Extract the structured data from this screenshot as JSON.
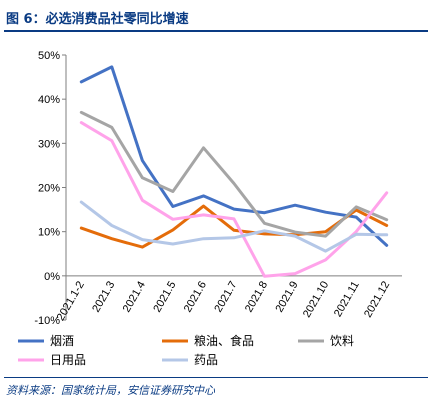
{
  "figure": {
    "title": "图 6：必选消费品社零同比增速",
    "source": "资料来源：国家统计局，安信证券研究中心"
  },
  "chart_data": {
    "type": "line",
    "title": "",
    "xlabel": "",
    "ylabel": "",
    "categories": [
      "2021.1-2",
      "2021.3",
      "2021.4",
      "2021.5",
      "2021.6",
      "2021.7",
      "2021.8",
      "2021.9",
      "2021.10",
      "2021.11",
      "2021.12"
    ],
    "ylim": [
      -10,
      50
    ],
    "ytick_labels": [
      "-10%",
      "0%",
      "10%",
      "20%",
      "30%",
      "40%",
      "50%"
    ],
    "ytick_values": [
      -10,
      0,
      10,
      20,
      30,
      40,
      50
    ],
    "grid": false,
    "legend_position": "bottom",
    "series": [
      {
        "name": "烟酒",
        "color": "#4472c4",
        "values": [
          43.9,
          47.3,
          26.1,
          15.7,
          18.1,
          15.1,
          14.3,
          16.0,
          14.4,
          13.3,
          6.9
        ]
      },
      {
        "name": "粮油、食品",
        "color": "#e46c0a",
        "values": [
          10.8,
          8.4,
          6.5,
          10.4,
          15.8,
          10.3,
          9.5,
          9.3,
          10.0,
          14.9,
          11.4
        ]
      },
      {
        "name": "饮料",
        "color": "#a5a5a5",
        "values": [
          37.0,
          33.6,
          22.2,
          19.1,
          29.0,
          20.9,
          11.9,
          9.9,
          9.0,
          15.6,
          12.7
        ]
      },
      {
        "name": "日用品",
        "color": "#ffa3ea",
        "values": [
          34.7,
          30.6,
          17.1,
          12.8,
          13.8,
          12.9,
          -0.1,
          0.5,
          3.6,
          10.0,
          18.8
        ]
      },
      {
        "name": "药品",
        "color": "#b4c7e7",
        "values": [
          16.7,
          11.4,
          8.2,
          7.2,
          8.4,
          8.6,
          10.2,
          9.0,
          5.6,
          9.4,
          9.3
        ]
      }
    ]
  }
}
